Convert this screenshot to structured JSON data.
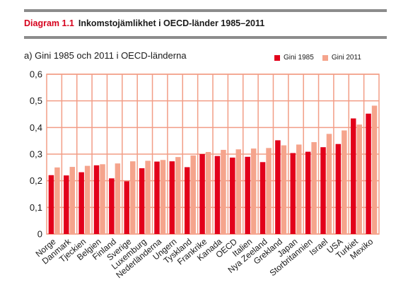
{
  "figure": {
    "label": "Diagram 1.1",
    "title": "Inkomstojämlikhet i OECD-länder 1985–2011"
  },
  "chart_data": {
    "type": "bar",
    "title": "a) Gini 1985 och 2011 i OECD-länderna",
    "xlabel": "",
    "ylabel": "",
    "ylim": [
      0,
      0.6
    ],
    "yticks": [
      "0",
      "0,1",
      "0,2",
      "0,3",
      "0,4",
      "0,5",
      "0,6"
    ],
    "grid": true,
    "legend_position": "top-right",
    "categories": [
      "Norge",
      "Danmark",
      "Tjeckien",
      "Belgien",
      "Finland",
      "Sverige",
      "Luxemburg",
      "Nederländerna",
      "Ungern",
      "Tyskland",
      "Frankrike",
      "Kanada",
      "OECD",
      "Italien",
      "Nya Zeeland",
      "Grekland",
      "Japan",
      "Storbritannien",
      "Israel",
      "USA",
      "Turkiet",
      "Mexiko"
    ],
    "series": [
      {
        "name": "Gini 1985",
        "color": "#e2001a",
        "values": [
          0.221,
          0.22,
          0.232,
          0.258,
          0.209,
          0.198,
          0.247,
          0.272,
          0.273,
          0.251,
          0.3,
          0.293,
          0.287,
          0.29,
          0.27,
          0.352,
          0.304,
          0.309,
          0.326,
          0.338,
          0.434,
          0.452
        ]
      },
      {
        "name": "Gini 2011",
        "color": "#f5a48c",
        "values": [
          0.25,
          0.252,
          0.256,
          0.262,
          0.265,
          0.273,
          0.275,
          0.278,
          0.289,
          0.295,
          0.308,
          0.316,
          0.318,
          0.321,
          0.323,
          0.333,
          0.336,
          0.345,
          0.376,
          0.389,
          0.411,
          0.482
        ]
      }
    ]
  }
}
